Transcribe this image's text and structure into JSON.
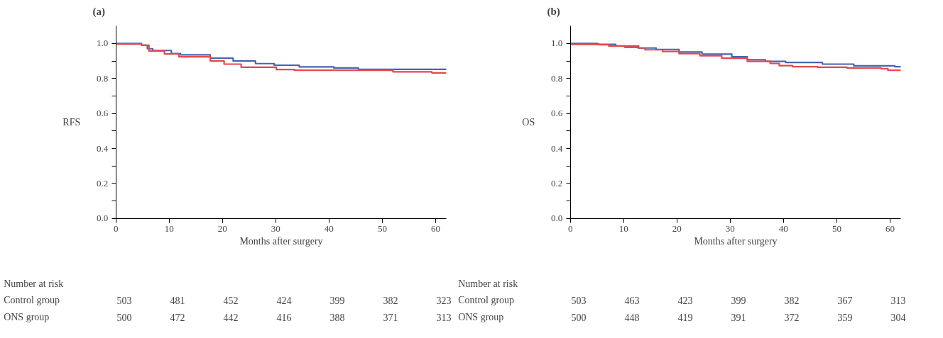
{
  "chart_data": [
    {
      "type": "step",
      "title": "(a)",
      "xlabel": "Months after surgery",
      "ylabel": "RFS",
      "xlim": [
        0,
        62
      ],
      "ylim": [
        0,
        1.1
      ],
      "xticks": [
        0,
        10,
        20,
        30,
        40,
        50,
        60
      ],
      "yticks": [
        {
          "value": 0,
          "label": "0.0"
        },
        {
          "value": 0.1,
          "label": null
        },
        0.2,
        {
          "value": 0.3,
          "label": null
        },
        0.4,
        {
          "value": 0.5,
          "label": null
        },
        0.6,
        {
          "value": 0.7,
          "label": null
        },
        0.8,
        {
          "value": 0.9,
          "label": null
        },
        {
          "value": 1,
          "label": "1.0"
        }
      ],
      "series": [
        {
          "color": "#4466b0",
          "x": [
            0,
            4.8,
            5.9,
            6.9,
            10.4,
            12.1,
            17.7,
            22,
            26.2,
            29.7,
            34.4,
            40.9,
            45.5,
            62
          ],
          "values": [
            1.0,
            0.99,
            0.97,
            0.96,
            0.942,
            0.935,
            0.916,
            0.9,
            0.885,
            0.876,
            0.866,
            0.86,
            0.852,
            0.852
          ]
        },
        {
          "color": "#e8474a",
          "x": [
            0,
            4.8,
            6.2,
            9.1,
            11.8,
            17.7,
            20.3,
            23.5,
            30.1,
            33.5,
            52,
            59.3,
            62
          ],
          "values": [
            0.997,
            0.99,
            0.957,
            0.94,
            0.924,
            0.9,
            0.882,
            0.864,
            0.851,
            0.847,
            0.838,
            0.832,
            0.832
          ]
        }
      ],
      "annotations": [
        "Number at risk",
        "Control group",
        "503",
        "481",
        "452",
        "424",
        "399",
        "382",
        "323",
        "ONS group",
        "500",
        "472",
        "442",
        "416",
        "388",
        "371",
        "313"
      ]
    },
    {
      "type": "step",
      "title": "(b)",
      "xlabel": "Months after surgery",
      "ylabel": "OS",
      "xlim": [
        0,
        62
      ],
      "ylim": [
        0,
        1.1
      ],
      "xticks": [
        0,
        10,
        20,
        30,
        40,
        50,
        60
      ],
      "yticks": [
        {
          "value": 0,
          "label": "0.0"
        },
        {
          "value": 0.1,
          "label": null
        },
        0.2,
        {
          "value": 0.3,
          "label": null
        },
        0.4,
        {
          "value": 0.5,
          "label": null
        },
        0.6,
        {
          "value": 0.7,
          "label": null
        },
        0.8,
        {
          "value": 0.9,
          "label": null
        },
        {
          "value": 1,
          "label": "1.0"
        }
      ],
      "series": [
        {
          "color": "#4466b0",
          "x": [
            0,
            5.1,
            8.5,
            10.2,
            12.7,
            16.1,
            20.4,
            24.7,
            30.3,
            33.2,
            36.6,
            40.4,
            47.3,
            53.2,
            60.9,
            62
          ],
          "values": [
            1.0,
            0.995,
            0.986,
            0.979,
            0.974,
            0.966,
            0.951,
            0.939,
            0.924,
            0.907,
            0.898,
            0.892,
            0.882,
            0.872,
            0.867,
            0.867
          ]
        },
        {
          "color": "#e8474a",
          "x": [
            0,
            5.5,
            7.2,
            12.8,
            14,
            17.3,
            20.4,
            24.3,
            28.4,
            33.2,
            37.5,
            39.2,
            41.7,
            46.4,
            51.9,
            58.3,
            59.6,
            62
          ],
          "values": [
            0.995,
            0.993,
            0.986,
            0.974,
            0.964,
            0.954,
            0.942,
            0.93,
            0.916,
            0.898,
            0.886,
            0.873,
            0.867,
            0.864,
            0.86,
            0.856,
            0.847,
            0.847
          ]
        }
      ],
      "annotations": [
        "Number at risk",
        "Control group",
        "503",
        "463",
        "423",
        "399",
        "382",
        "367",
        "313",
        "ONS group",
        "500",
        "448",
        "419",
        "391",
        "372",
        "359",
        "304"
      ]
    }
  ]
}
